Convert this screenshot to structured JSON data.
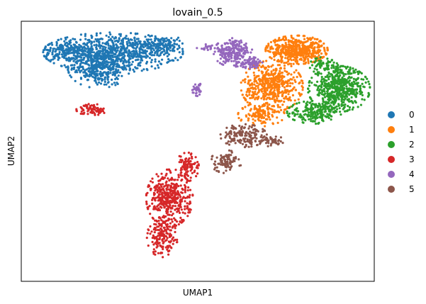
{
  "chart_data": {
    "type": "scatter",
    "title": "lovain_0.5",
    "xlabel": "UMAP1",
    "ylabel": "UMAP2",
    "xlim": [
      0,
      100
    ],
    "ylim": [
      0,
      100
    ],
    "grid": false,
    "legend_position": "right",
    "series": [
      {
        "name": "0",
        "color": "#1f77b4",
        "clusters": [
          {
            "cx": 26,
            "cy": 88,
            "rx": 18,
            "ry": 7,
            "n": 780
          },
          {
            "cx": 22,
            "cy": 82,
            "rx": 8,
            "ry": 7,
            "n": 320
          },
          {
            "cx": 40,
            "cy": 91,
            "rx": 7,
            "ry": 3,
            "n": 120
          },
          {
            "cx": 13,
            "cy": 89,
            "rx": 6,
            "ry": 3,
            "n": 120
          }
        ]
      },
      {
        "name": "1",
        "color": "#ff7f0e",
        "clusters": [
          {
            "cx": 78,
            "cy": 89,
            "rx": 8,
            "ry": 5,
            "n": 520
          },
          {
            "cx": 71,
            "cy": 75,
            "rx": 8,
            "ry": 9,
            "n": 500
          },
          {
            "cx": 68,
            "cy": 64,
            "rx": 6,
            "ry": 4,
            "n": 120
          }
        ]
      },
      {
        "name": "2",
        "color": "#2ca02c",
        "clusters": [
          {
            "cx": 90,
            "cy": 74,
            "rx": 8,
            "ry": 8,
            "n": 560
          },
          {
            "cx": 83,
            "cy": 65,
            "rx": 7,
            "ry": 4,
            "n": 200
          },
          {
            "cx": 86,
            "cy": 83,
            "rx": 4,
            "ry": 3,
            "n": 60
          }
        ]
      },
      {
        "name": "3",
        "color": "#d62728",
        "clusters": [
          {
            "cx": 42,
            "cy": 32,
            "rx": 6,
            "ry": 10,
            "n": 420
          },
          {
            "cx": 40,
            "cy": 17,
            "rx": 4,
            "ry": 7,
            "n": 160
          },
          {
            "cx": 47,
            "cy": 44,
            "rx": 3,
            "ry": 5,
            "n": 100
          },
          {
            "cx": 20,
            "cy": 66,
            "rx": 4,
            "ry": 2,
            "n": 70
          }
        ]
      },
      {
        "name": "4",
        "color": "#9467bd",
        "clusters": [
          {
            "cx": 60,
            "cy": 88,
            "rx": 5,
            "ry": 5,
            "n": 220
          },
          {
            "cx": 65,
            "cy": 84,
            "rx": 3,
            "ry": 2,
            "n": 70
          },
          {
            "cx": 50,
            "cy": 74,
            "rx": 1.5,
            "ry": 2.5,
            "n": 35
          },
          {
            "cx": 53,
            "cy": 90,
            "rx": 3,
            "ry": 1.5,
            "n": 20
          }
        ]
      },
      {
        "name": "5",
        "color": "#8c564b",
        "clusters": [
          {
            "cx": 63,
            "cy": 56,
            "rx": 6,
            "ry": 4,
            "n": 160
          },
          {
            "cx": 58,
            "cy": 46,
            "rx": 4,
            "ry": 4,
            "n": 90
          },
          {
            "cx": 71,
            "cy": 54,
            "rx": 3,
            "ry": 2,
            "n": 40
          }
        ]
      }
    ]
  }
}
